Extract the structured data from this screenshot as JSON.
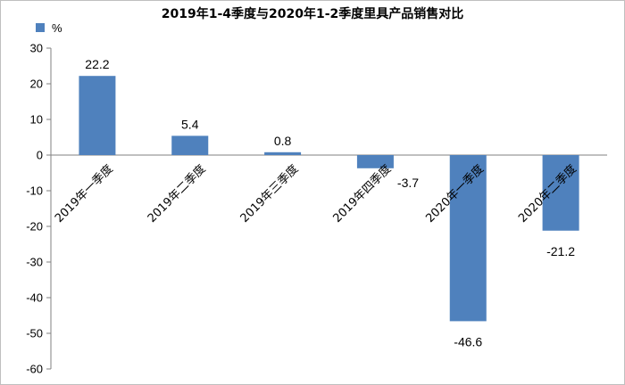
{
  "chart_data": {
    "type": "bar",
    "title": "2019年1-4季度与2020年1-2季度里具产品销售对比",
    "categories": [
      "2019年一季度",
      "2019年二季度",
      "2019年三季度",
      "2019年四季度",
      "2020年一季度",
      "2020年二季度"
    ],
    "series": [
      {
        "name": "%",
        "values": [
          22.2,
          5.4,
          0.8,
          -3.7,
          -46.6,
          -21.2
        ],
        "color": "#4f81bd"
      }
    ],
    "data_labels": [
      "22.2",
      "5.4",
      "0.8",
      "-3.7",
      "-46.6",
      "-21.2"
    ],
    "ylim": [
      -60,
      30
    ],
    "yticks": [
      30,
      20,
      10,
      0,
      -10,
      -20,
      -30,
      -40,
      -50,
      -60
    ],
    "grid": false,
    "legend": "top-left"
  }
}
